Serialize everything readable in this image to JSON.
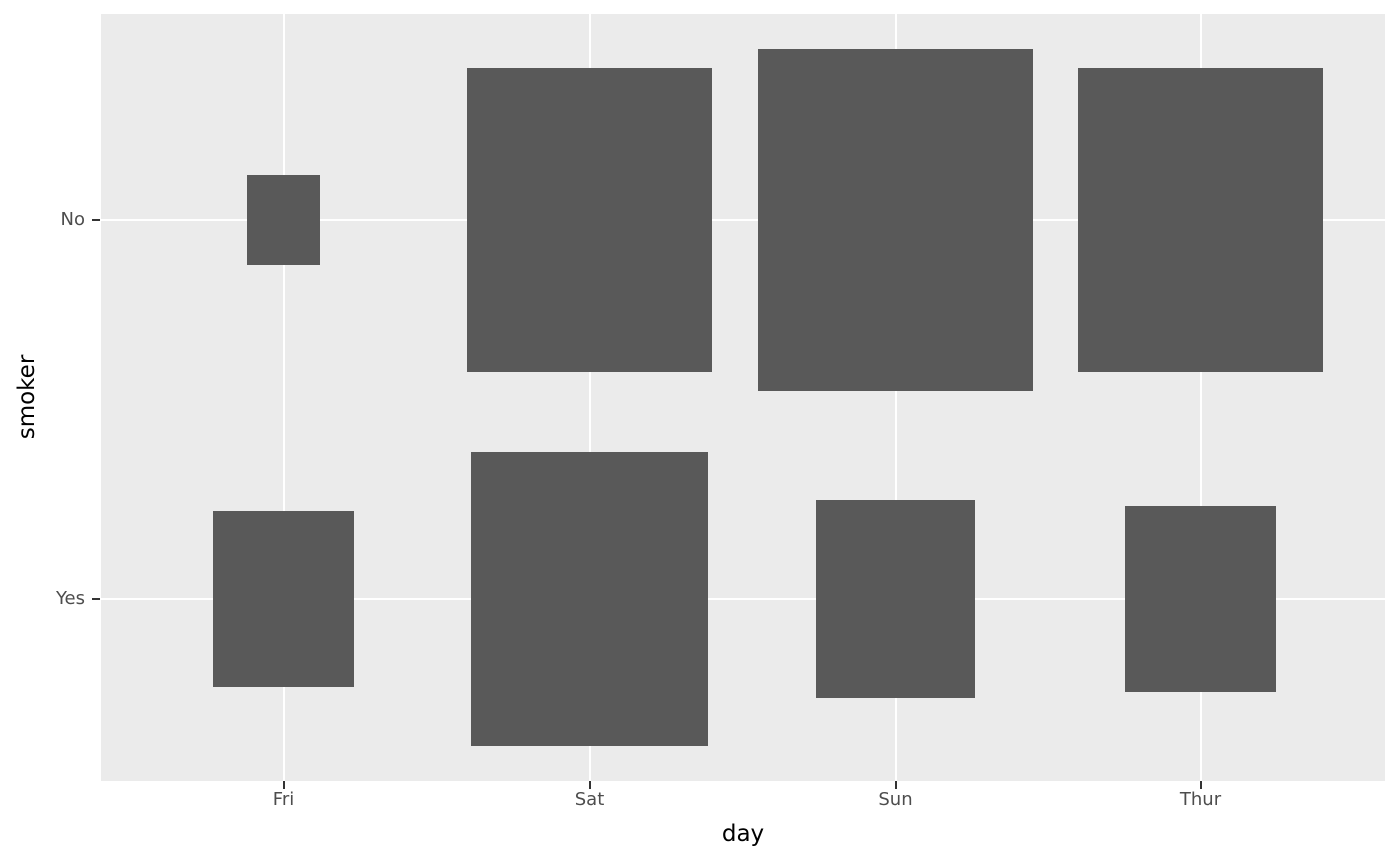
{
  "chart_data": {
    "type": "scatter",
    "mark": "square",
    "size_encoding": "square side proportional to sqrt(count), area proportional to count",
    "title": "",
    "xlabel": "day",
    "ylabel": "smoker",
    "x_categories": [
      "Fri",
      "Sat",
      "Sun",
      "Thur"
    ],
    "y_categories": [
      "No",
      "Yes"
    ],
    "points": [
      {
        "day": "Fri",
        "smoker": "No",
        "count": 4
      },
      {
        "day": "Fri",
        "smoker": "Yes",
        "count": 15
      },
      {
        "day": "Sat",
        "smoker": "No",
        "count": 45
      },
      {
        "day": "Sat",
        "smoker": "Yes",
        "count": 42
      },
      {
        "day": "Sun",
        "smoker": "No",
        "count": 57
      },
      {
        "day": "Sun",
        "smoker": "Yes",
        "count": 19
      },
      {
        "day": "Thur",
        "smoker": "No",
        "count": 45
      },
      {
        "day": "Thur",
        "smoker": "Yes",
        "count": 17
      }
    ],
    "legend": "none",
    "grid": "major white gridlines at category centers on grey panel",
    "colors": {
      "page_bg": "#FFFFFF",
      "panel_bg": "#EBEBEB",
      "square_fill": "#595959",
      "gridline": "#FFFFFF",
      "tick_label": "#4D4D4D",
      "axis_title": "#000000",
      "tick_mark": "#333333"
    }
  }
}
